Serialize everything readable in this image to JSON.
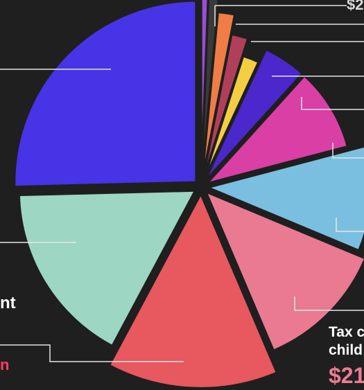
{
  "chart_data": {
    "type": "pie",
    "title": "",
    "slices": [
      {
        "name": "",
        "value": 0.6,
        "color": "#9b4dd6"
      },
      {
        "name": "",
        "value": 0.9,
        "color": "#3a3a3a"
      },
      {
        "name": "",
        "value": 1.6,
        "color": "#ee7e45"
      },
      {
        "name": "",
        "value": 1.8,
        "color": "#b0405a"
      },
      {
        "name": "",
        "value": 2.0,
        "color": "#f4ce42"
      },
      {
        "name": "",
        "value": 4.8,
        "color": "#4a28cc"
      },
      {
        "name": "",
        "value": 9.2,
        "color": "#d93fa4"
      },
      {
        "name": "",
        "value": 10.4,
        "color": "#7bbfe0"
      },
      {
        "name": "Tax c… child…",
        "value": 12.3,
        "color": "#e97a92"
      },
      {
        "name": "",
        "value": 14.2,
        "color": "#e8585f"
      },
      {
        "name": "…nt",
        "value": 16.8,
        "color": "#9dd6c3"
      },
      {
        "name": "",
        "value": 25.4,
        "color": "#4634e6"
      }
    ]
  },
  "labels": {
    "top_amount": "$2",
    "left_nt": "nt",
    "left_red": "n",
    "tax_line1": "Tax c",
    "tax_line2": "child",
    "tax_amount": "$21"
  }
}
